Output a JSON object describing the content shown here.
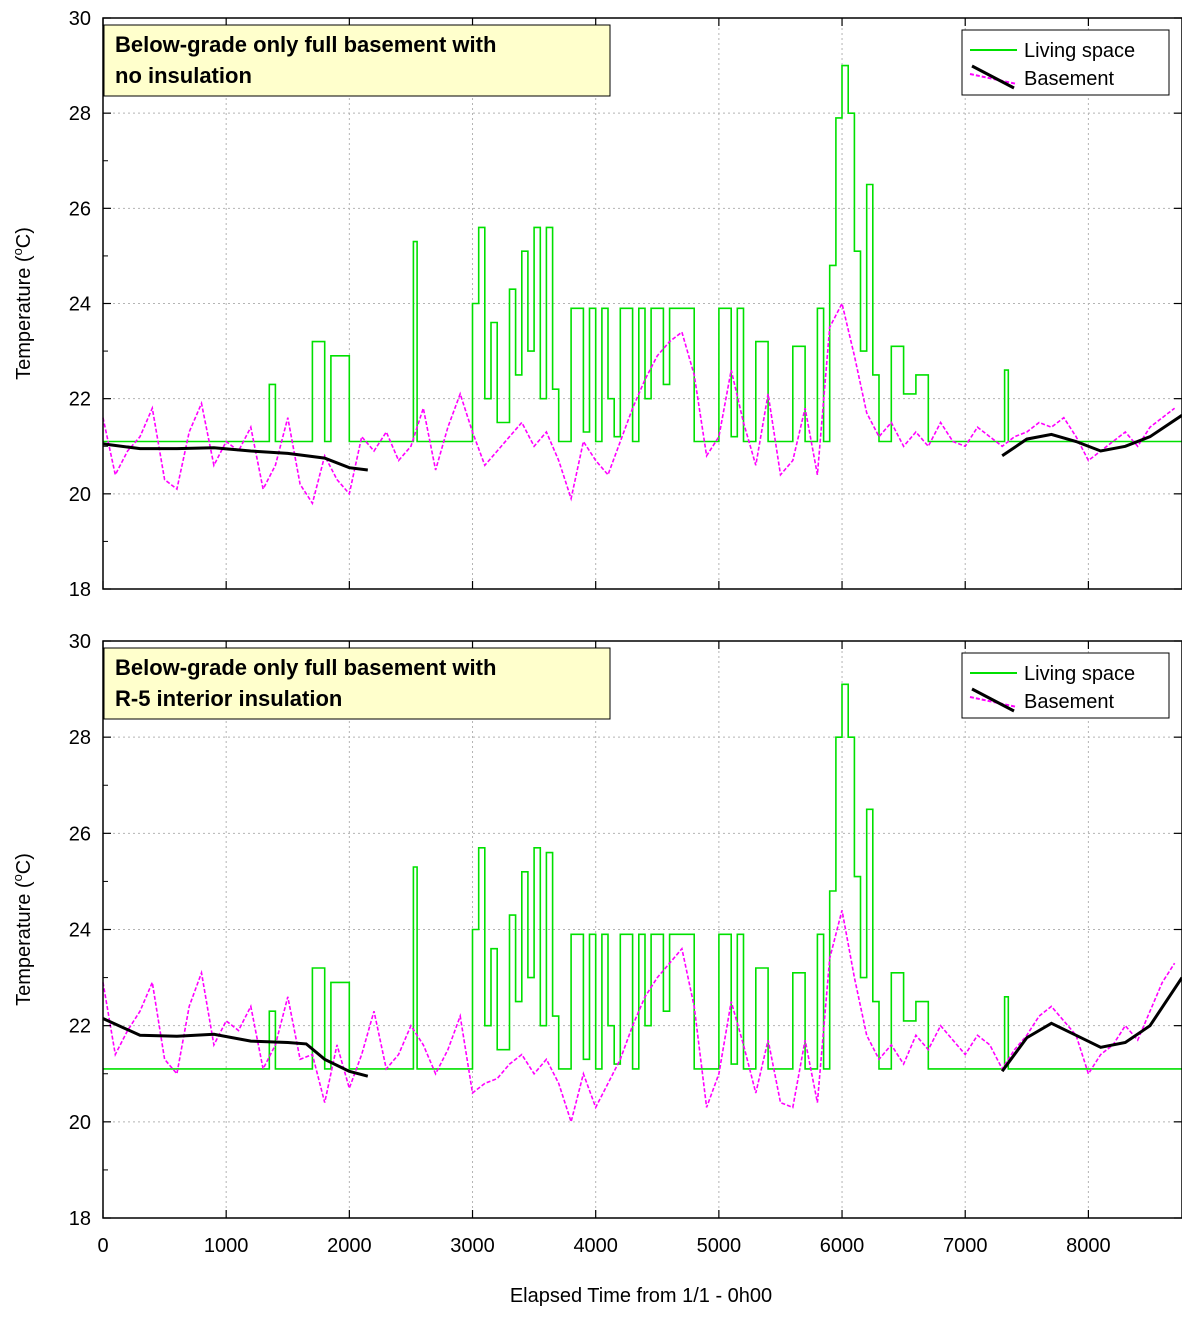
{
  "xaxis": {
    "label": "Elapsed Time from 1/1 - 0h00",
    "ticks": [
      "0",
      "1000",
      "2000",
      "3000",
      "4000",
      "5000",
      "6000",
      "7000",
      "8000"
    ],
    "range": [
      0,
      8760
    ]
  },
  "yaxis": {
    "label_main": "Temperature (",
    "label_super": "o",
    "label_tail": "C)",
    "ticks": [
      "18",
      "20",
      "22",
      "24",
      "26",
      "28",
      "30"
    ],
    "range": [
      18,
      30
    ]
  },
  "legend": {
    "living": "Living space",
    "basement": "Basement"
  },
  "colors": {
    "living": "#00e000",
    "basement": "#ff00ff",
    "trend": "#000000",
    "annotation_bg": "#ffffcc",
    "grid": "#b4b4b4"
  },
  "chart_data": [
    {
      "type": "line",
      "annotation": [
        "Below-grade only full basement with",
        "no insulation"
      ],
      "xlabel": "",
      "ylabel": "Temperature (oC)",
      "xlim": [
        0,
        8760
      ],
      "ylim": [
        18,
        30
      ],
      "grid": true,
      "legend_position": "top-right",
      "series": [
        {
          "name": "Living space",
          "x": [
            0,
            1300,
            1350,
            1400,
            1700,
            1800,
            1850,
            2000,
            2500,
            2520,
            2550,
            2900,
            3000,
            3050,
            3100,
            3150,
            3200,
            3300,
            3350,
            3400,
            3450,
            3500,
            3550,
            3600,
            3650,
            3700,
            3780,
            3800,
            3850,
            3900,
            3950,
            4000,
            4050,
            4100,
            4150,
            4200,
            4250,
            4300,
            4350,
            4400,
            4450,
            4500,
            4550,
            4600,
            4650,
            4700,
            4750,
            4800,
            4850,
            4900,
            4950,
            5000,
            5050,
            5100,
            5150,
            5200,
            5300,
            5400,
            5500,
            5600,
            5700,
            5800,
            5850,
            5900,
            5950,
            6000,
            6050,
            6100,
            6150,
            6200,
            6250,
            6300,
            6400,
            6500,
            6600,
            6700,
            6800,
            7000,
            7300,
            7320,
            7350,
            8760
          ],
          "y": [
            21.1,
            21.1,
            22.3,
            21.1,
            23.2,
            21.1,
            22.9,
            21.1,
            21.1,
            25.3,
            21.1,
            21.1,
            24.0,
            25.6,
            22.0,
            23.6,
            21.5,
            24.3,
            22.5,
            25.1,
            23.0,
            25.6,
            22.0,
            25.6,
            22.2,
            21.1,
            21.1,
            23.9,
            23.9,
            21.3,
            23.9,
            21.1,
            23.9,
            22.0,
            21.2,
            23.9,
            23.9,
            21.1,
            23.9,
            22.0,
            23.9,
            23.9,
            22.3,
            23.9,
            23.9,
            23.9,
            23.9,
            21.1,
            21.1,
            21.1,
            21.1,
            23.9,
            23.9,
            21.2,
            23.9,
            21.1,
            23.2,
            21.1,
            21.1,
            23.1,
            21.1,
            23.9,
            21.1,
            24.8,
            27.9,
            29.0,
            28.0,
            25.1,
            23.0,
            26.5,
            22.5,
            21.1,
            23.1,
            22.1,
            22.5,
            21.1,
            21.1,
            21.1,
            21.1,
            22.6,
            21.1,
            21.1
          ]
        },
        {
          "name": "Basement",
          "x": [
            0,
            100,
            200,
            300,
            400,
            500,
            600,
            700,
            800,
            900,
            1000,
            1100,
            1200,
            1300,
            1400,
            1500,
            1600,
            1700,
            1800,
            1900,
            2000,
            2100,
            2200,
            2300,
            2400,
            2500,
            2600,
            2700,
            2800,
            2900,
            3000,
            3100,
            3200,
            3300,
            3400,
            3500,
            3600,
            3700,
            3800,
            3900,
            4000,
            4100,
            4200,
            4300,
            4400,
            4500,
            4600,
            4700,
            4800,
            4900,
            5000,
            5100,
            5200,
            5300,
            5400,
            5500,
            5600,
            5700,
            5800,
            5900,
            6000,
            6100,
            6200,
            6300,
            6400,
            6500,
            6600,
            6700,
            6800,
            6900,
            7000,
            7100,
            7200,
            7300,
            7400,
            7500,
            7600,
            7700,
            7800,
            7900,
            8000,
            8100,
            8200,
            8300,
            8400,
            8500,
            8600,
            8700
          ],
          "y": [
            21.6,
            20.4,
            20.9,
            21.2,
            21.8,
            20.3,
            20.1,
            21.3,
            21.9,
            20.6,
            21.1,
            20.9,
            21.4,
            20.1,
            20.6,
            21.6,
            20.2,
            19.8,
            20.8,
            20.3,
            20.0,
            21.2,
            20.9,
            21.3,
            20.7,
            21.0,
            21.8,
            20.5,
            21.4,
            22.1,
            21.3,
            20.6,
            20.9,
            21.2,
            21.5,
            21.0,
            21.3,
            20.7,
            19.9,
            21.1,
            20.7,
            20.4,
            21.1,
            21.8,
            22.4,
            22.9,
            23.2,
            23.4,
            22.5,
            20.8,
            21.2,
            22.6,
            21.5,
            20.6,
            22.1,
            20.4,
            20.7,
            21.8,
            20.4,
            23.5,
            24.0,
            22.9,
            21.7,
            21.2,
            21.5,
            21.0,
            21.3,
            21.0,
            21.5,
            21.1,
            21.0,
            21.4,
            21.2,
            21.0,
            21.2,
            21.3,
            21.5,
            21.4,
            21.6,
            21.2,
            20.7,
            20.9,
            21.1,
            21.3,
            21.0,
            21.4,
            21.6,
            21.8
          ]
        },
        {
          "name": "",
          "x": [
            0,
            300,
            600,
            900,
            1200,
            1500,
            1800,
            2000,
            2150
          ],
          "y": [
            21.05,
            20.95,
            20.95,
            20.97,
            20.9,
            20.85,
            20.75,
            20.55,
            20.5
          ]
        },
        {
          "name": "",
          "x": [
            7300,
            7500,
            7700,
            7900,
            8100,
            8300,
            8500,
            8760
          ],
          "y": [
            20.8,
            21.15,
            21.25,
            21.1,
            20.9,
            21.0,
            21.2,
            21.65
          ]
        }
      ]
    },
    {
      "type": "line",
      "annotation": [
        "Below-grade only full basement with",
        "R-5 interior insulation"
      ],
      "xlabel": "Elapsed Time from 1/1 - 0h00",
      "ylabel": "Temperature (oC)",
      "xlim": [
        0,
        8760
      ],
      "ylim": [
        18,
        30
      ],
      "grid": true,
      "legend_position": "top-right",
      "series": [
        {
          "name": "Living space",
          "x": [
            0,
            1300,
            1350,
            1400,
            1700,
            1800,
            1850,
            2000,
            2500,
            2520,
            2550,
            2900,
            3000,
            3050,
            3100,
            3150,
            3200,
            3300,
            3350,
            3400,
            3450,
            3500,
            3550,
            3600,
            3650,
            3700,
            3780,
            3800,
            3850,
            3900,
            3950,
            4000,
            4050,
            4100,
            4150,
            4200,
            4250,
            4300,
            4350,
            4400,
            4450,
            4500,
            4550,
            4600,
            4650,
            4700,
            4750,
            4800,
            4850,
            4900,
            4950,
            5000,
            5050,
            5100,
            5150,
            5200,
            5300,
            5400,
            5500,
            5600,
            5700,
            5800,
            5850,
            5900,
            5950,
            6000,
            6050,
            6100,
            6150,
            6200,
            6250,
            6300,
            6400,
            6500,
            6600,
            6700,
            6800,
            7000,
            7300,
            7320,
            7350,
            8760
          ],
          "y": [
            21.1,
            21.1,
            22.3,
            21.1,
            23.2,
            21.1,
            22.9,
            21.1,
            21.1,
            25.3,
            21.1,
            21.1,
            24.0,
            25.7,
            22.0,
            23.6,
            21.5,
            24.3,
            22.5,
            25.2,
            23.0,
            25.7,
            22.0,
            25.6,
            22.2,
            21.1,
            21.1,
            23.9,
            23.9,
            21.3,
            23.9,
            21.1,
            23.9,
            22.0,
            21.2,
            23.9,
            23.9,
            21.1,
            23.9,
            22.0,
            23.9,
            23.9,
            22.3,
            23.9,
            23.9,
            23.9,
            23.9,
            21.1,
            21.1,
            21.1,
            21.1,
            23.9,
            23.9,
            21.2,
            23.9,
            21.1,
            23.2,
            21.1,
            21.1,
            23.1,
            21.1,
            23.9,
            21.1,
            24.8,
            28.0,
            29.1,
            28.0,
            25.1,
            23.0,
            26.5,
            22.5,
            21.1,
            23.1,
            22.1,
            22.5,
            21.1,
            21.1,
            21.1,
            21.1,
            22.6,
            21.1,
            21.1
          ]
        },
        {
          "name": "Basement",
          "x": [
            0,
            100,
            200,
            300,
            400,
            500,
            600,
            700,
            800,
            900,
            1000,
            1100,
            1200,
            1300,
            1400,
            1500,
            1600,
            1700,
            1800,
            1900,
            2000,
            2100,
            2200,
            2300,
            2400,
            2500,
            2600,
            2700,
            2800,
            2900,
            3000,
            3100,
            3200,
            3300,
            3400,
            3500,
            3600,
            3700,
            3800,
            3900,
            4000,
            4100,
            4200,
            4300,
            4400,
            4500,
            4600,
            4700,
            4800,
            4900,
            5000,
            5100,
            5200,
            5300,
            5400,
            5500,
            5600,
            5700,
            5800,
            5900,
            6000,
            6100,
            6200,
            6300,
            6400,
            6500,
            6600,
            6700,
            6800,
            6900,
            7000,
            7100,
            7200,
            7300,
            7400,
            7500,
            7600,
            7700,
            7800,
            7900,
            8000,
            8100,
            8200,
            8300,
            8400,
            8500,
            8600,
            8700
          ],
          "y": [
            22.9,
            21.4,
            21.9,
            22.3,
            22.9,
            21.3,
            21.0,
            22.4,
            23.1,
            21.6,
            22.1,
            21.9,
            22.4,
            21.1,
            21.6,
            22.6,
            21.3,
            21.4,
            20.4,
            21.6,
            20.7,
            21.4,
            22.3,
            21.1,
            21.4,
            22.0,
            21.6,
            21.0,
            21.5,
            22.2,
            20.6,
            20.8,
            20.9,
            21.2,
            21.4,
            21.0,
            21.3,
            20.8,
            20.0,
            21.0,
            20.3,
            20.8,
            21.3,
            22.0,
            22.6,
            23.0,
            23.3,
            23.6,
            22.4,
            20.3,
            21.0,
            22.5,
            21.6,
            20.6,
            21.7,
            20.4,
            20.3,
            21.7,
            20.4,
            23.4,
            24.4,
            23.0,
            21.8,
            21.3,
            21.6,
            21.2,
            21.8,
            21.5,
            22.0,
            21.7,
            21.4,
            21.8,
            21.6,
            21.1,
            21.5,
            21.8,
            22.2,
            22.4,
            22.1,
            21.8,
            21.0,
            21.4,
            21.6,
            22.0,
            21.7,
            22.3,
            22.9,
            23.3
          ]
        },
        {
          "name": "",
          "x": [
            0,
            300,
            600,
            900,
            1200,
            1500,
            1650,
            1800,
            2000,
            2150
          ],
          "y": [
            22.15,
            21.8,
            21.78,
            21.82,
            21.68,
            21.65,
            21.62,
            21.3,
            21.05,
            20.95
          ]
        },
        {
          "name": "",
          "x": [
            7300,
            7500,
            7700,
            7900,
            8100,
            8300,
            8500,
            8760
          ],
          "y": [
            21.05,
            21.75,
            22.05,
            21.8,
            21.55,
            21.65,
            22.0,
            23.0
          ]
        }
      ]
    }
  ]
}
